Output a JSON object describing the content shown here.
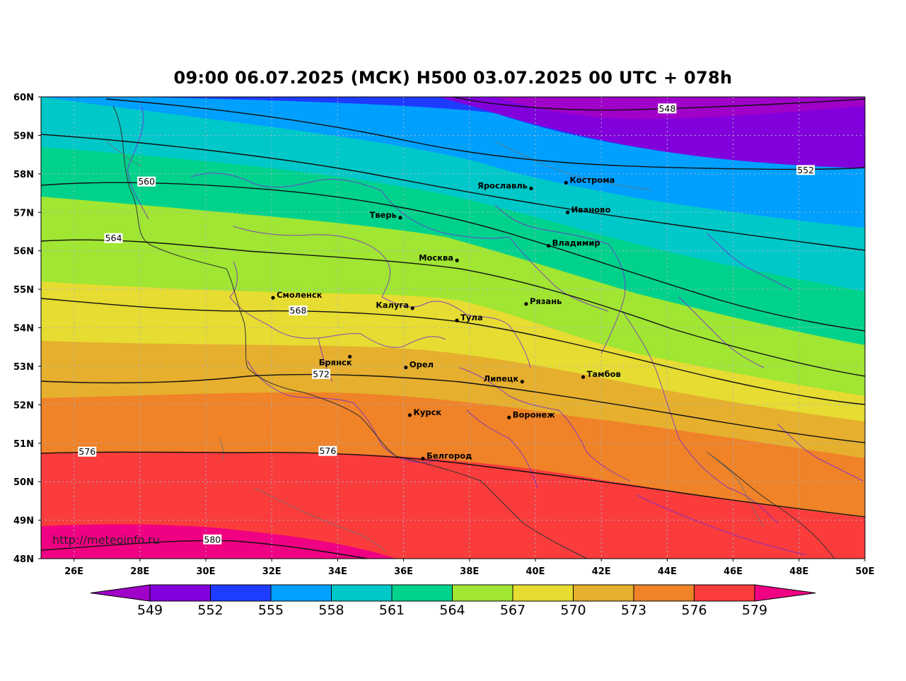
{
  "title": "09:00 06.07.2025 (МСК) H500  03.07.2025 00 UTC + 078h",
  "credit": "http://meteoinfo.ru",
  "lon_ticks": [
    "26E",
    "28E",
    "30E",
    "32E",
    "34E",
    "36E",
    "38E",
    "40E",
    "42E",
    "44E",
    "46E",
    "48E",
    "50E"
  ],
  "lat_ticks": [
    "60N",
    "59N",
    "58N",
    "57N",
    "56N",
    "55N",
    "54N",
    "53N",
    "52N",
    "51N",
    "50N",
    "49N",
    "48N"
  ],
  "extent": {
    "lon": [
      25,
      50
    ],
    "lat": [
      48,
      60
    ]
  },
  "cities": [
    {
      "id": "kostroma",
      "name": "Кострома",
      "lon": 40.93,
      "lat": 57.77,
      "side": "right"
    },
    {
      "id": "yaroslavl",
      "name": "Ярославль",
      "lon": 39.87,
      "lat": 57.62,
      "side": "left"
    },
    {
      "id": "ivanovo",
      "name": "Иваново",
      "lon": 40.98,
      "lat": 57.0,
      "side": "right"
    },
    {
      "id": "tver",
      "name": "Тверь",
      "lon": 35.9,
      "lat": 56.86,
      "side": "left"
    },
    {
      "id": "vladimir",
      "name": "Владимир",
      "lon": 40.4,
      "lat": 56.13,
      "side": "right"
    },
    {
      "id": "moskva",
      "name": "Москва",
      "lon": 37.62,
      "lat": 55.75,
      "side": "left"
    },
    {
      "id": "smolensk",
      "name": "Смоленск",
      "lon": 32.04,
      "lat": 54.78,
      "side": "right"
    },
    {
      "id": "ryazan",
      "name": "Рязань",
      "lon": 39.72,
      "lat": 54.62,
      "side": "right"
    },
    {
      "id": "kaluga",
      "name": "Калуга",
      "lon": 36.27,
      "lat": 54.51,
      "side": "left"
    },
    {
      "id": "tula",
      "name": "Тула",
      "lon": 37.62,
      "lat": 54.19,
      "side": "right"
    },
    {
      "id": "bryansk",
      "name": "Брянск",
      "lon": 34.37,
      "lat": 53.25,
      "side": "below-left"
    },
    {
      "id": "orel",
      "name": "Орел",
      "lon": 36.07,
      "lat": 52.97,
      "side": "right"
    },
    {
      "id": "tambov",
      "name": "Тамбов",
      "lon": 41.45,
      "lat": 52.72,
      "side": "right"
    },
    {
      "id": "lipetsk",
      "name": "Липецк",
      "lon": 39.6,
      "lat": 52.6,
      "side": "left"
    },
    {
      "id": "kursk",
      "name": "Курск",
      "lon": 36.19,
      "lat": 51.73,
      "side": "right"
    },
    {
      "id": "voronezh",
      "name": "Воронеж",
      "lon": 39.2,
      "lat": 51.67,
      "side": "right"
    },
    {
      "id": "belgorod",
      "name": "Белгород",
      "lon": 36.59,
      "lat": 50.6,
      "side": "right"
    }
  ],
  "contour_labels": [
    {
      "text": "548",
      "lon": 44.0,
      "lat": 59.7
    },
    {
      "text": "552",
      "lon": 48.2,
      "lat": 58.1
    },
    {
      "text": "560",
      "lon": 28.2,
      "lat": 57.8
    },
    {
      "text": "564",
      "lon": 27.2,
      "lat": 56.33
    },
    {
      "text": "568",
      "lon": 32.8,
      "lat": 54.45
    },
    {
      "text": "572",
      "lon": 33.5,
      "lat": 52.8
    },
    {
      "text": "576",
      "lon": 26.4,
      "lat": 50.78
    },
    {
      "text": "576",
      "lon": 33.7,
      "lat": 50.8
    },
    {
      "text": "580",
      "lon": 30.2,
      "lat": 48.5
    }
  ],
  "colorbar": {
    "labels": [
      "549",
      "552",
      "555",
      "558",
      "561",
      "564",
      "567",
      "570",
      "573",
      "576",
      "579"
    ],
    "colors": [
      "#a000c8",
      "#8200dc",
      "#1e3cff",
      "#00a0ff",
      "#00c8c8",
      "#00d28c",
      "#a0e632",
      "#e6dc32",
      "#e6af2d",
      "#f08228",
      "#fa3c3c",
      "#f00082"
    ]
  }
}
